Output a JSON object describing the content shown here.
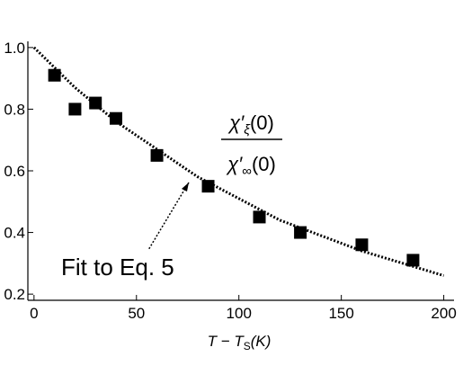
{
  "chart_data": {
    "type": "scatter",
    "xlabel": {
      "parts": [
        "T − T",
        "S",
        "(K)"
      ]
    },
    "annotation": "Fit to Eq. 5",
    "fraction_label": {
      "numerator": [
        "χ′",
        "ξ",
        "(0)"
      ],
      "denominator": [
        "χ′",
        "∞",
        "(0)"
      ]
    },
    "points": {
      "color": "#000000",
      "x": [
        10,
        20,
        30,
        40,
        60,
        85,
        110,
        130,
        160,
        185
      ],
      "y": [
        0.91,
        0.8,
        0.82,
        0.77,
        0.65,
        0.55,
        0.45,
        0.4,
        0.36,
        0.31
      ]
    },
    "fit": {
      "color": "#000000",
      "x": [
        0,
        20,
        40,
        60,
        80,
        100,
        120,
        140,
        160,
        180,
        200
      ],
      "y": [
        1.0,
        0.87,
        0.76,
        0.67,
        0.58,
        0.51,
        0.44,
        0.39,
        0.34,
        0.3,
        0.26
      ]
    },
    "xlim": [
      -3,
      205
    ],
    "ylim": [
      0.18,
      1.02
    ],
    "xticks": [
      0,
      50,
      100,
      150,
      200
    ],
    "yticks": [
      0.2,
      0.4,
      0.6,
      0.8,
      {
        "value": 1,
        "label": "1.0"
      }
    ]
  }
}
